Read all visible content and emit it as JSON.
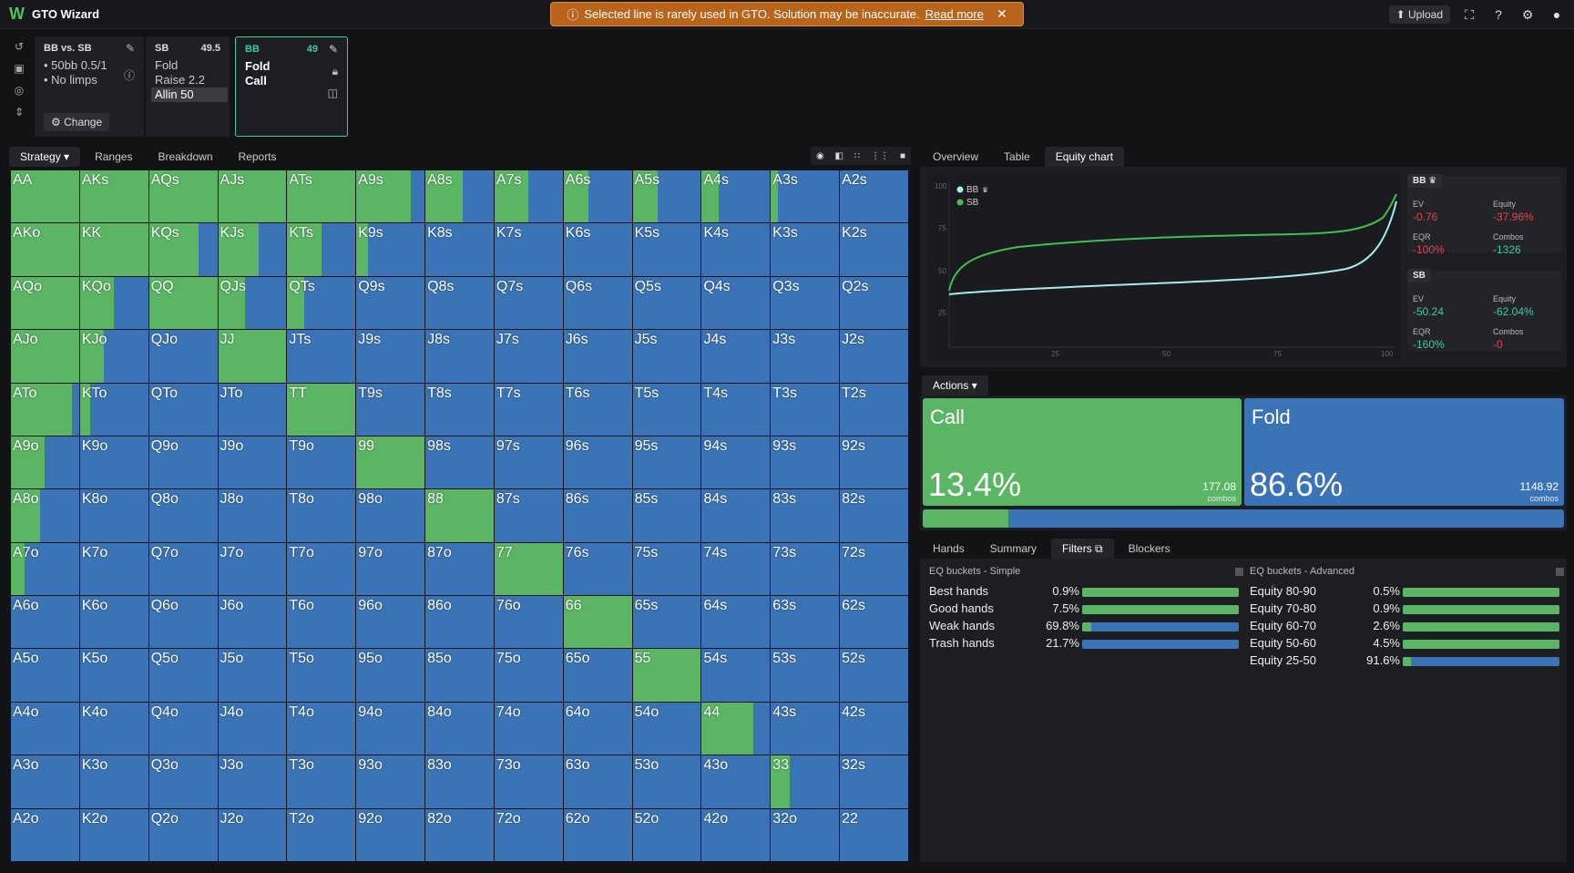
{
  "app": {
    "title": "GTO Wizard",
    "logo_letter": "W"
  },
  "banner": {
    "text": "Selected line is rarely used in GTO. Solution may be inaccurate.",
    "link": "Read more"
  },
  "topbar": {
    "upload": "Upload"
  },
  "cards": {
    "c1": {
      "header": "BB vs. SB",
      "line1": "• 50bb 0.5/1",
      "line2": "• No limps",
      "change": "Change"
    },
    "c2": {
      "header": "SB",
      "num": "49.5",
      "opts": [
        "Fold",
        "Raise 2.2",
        "Allin 50"
      ]
    },
    "c3": {
      "header": "BB",
      "num": "49",
      "opts": [
        "Fold",
        "Call"
      ]
    }
  },
  "left_tabs": [
    "Strategy",
    "Ranges",
    "Breakdown",
    "Reports"
  ],
  "grid": [
    [
      "AA",
      1
    ],
    [
      "AKs",
      1
    ],
    [
      "AQs",
      1
    ],
    [
      "AJs",
      1
    ],
    [
      "ATs",
      1
    ],
    [
      "A9s",
      0.8
    ],
    [
      "A8s",
      0.55
    ],
    [
      "A7s",
      0.5
    ],
    [
      "A6s",
      0.37
    ],
    [
      "A5s",
      0.37
    ],
    [
      "A4s",
      0.25
    ],
    [
      "A3s",
      0.1
    ],
    [
      "A2s",
      0
    ],
    [
      "AKo",
      1
    ],
    [
      "KK",
      1
    ],
    [
      "KQs",
      0.72
    ],
    [
      "KJs",
      0.6
    ],
    [
      "KTs",
      0.5
    ],
    [
      "K9s",
      0.17
    ],
    [
      "K8s",
      0
    ],
    [
      "K7s",
      0
    ],
    [
      "K6s",
      0
    ],
    [
      "K5s",
      0
    ],
    [
      "K4s",
      0
    ],
    [
      "K3s",
      0
    ],
    [
      "K2s",
      0
    ],
    [
      "AQo",
      1
    ],
    [
      "KQo",
      0.5
    ],
    [
      "QQ",
      1
    ],
    [
      "QJs",
      0.4
    ],
    [
      "QTs",
      0.25
    ],
    [
      "Q9s",
      0
    ],
    [
      "Q8s",
      0
    ],
    [
      "Q7s",
      0
    ],
    [
      "Q6s",
      0
    ],
    [
      "Q5s",
      0
    ],
    [
      "Q4s",
      0
    ],
    [
      "Q3s",
      0
    ],
    [
      "Q2s",
      0
    ],
    [
      "AJo",
      1
    ],
    [
      "KJo",
      0.35
    ],
    [
      "QJo",
      0
    ],
    [
      "JJ",
      1
    ],
    [
      "JTs",
      0
    ],
    [
      "J9s",
      0
    ],
    [
      "J8s",
      0
    ],
    [
      "J7s",
      0
    ],
    [
      "J6s",
      0
    ],
    [
      "J5s",
      0
    ],
    [
      "J4s",
      0
    ],
    [
      "J3s",
      0
    ],
    [
      "J2s",
      0
    ],
    [
      "ATo",
      0.9
    ],
    [
      "KTo",
      0.15
    ],
    [
      "QTo",
      0
    ],
    [
      "JTo",
      0
    ],
    [
      "TT",
      1
    ],
    [
      "T9s",
      0
    ],
    [
      "T8s",
      0
    ],
    [
      "T7s",
      0
    ],
    [
      "T6s",
      0
    ],
    [
      "T5s",
      0
    ],
    [
      "T4s",
      0
    ],
    [
      "T3s",
      0
    ],
    [
      "T2s",
      0
    ],
    [
      "A9o",
      0.5
    ],
    [
      "K9o",
      0
    ],
    [
      "Q9o",
      0
    ],
    [
      "J9o",
      0
    ],
    [
      "T9o",
      0
    ],
    [
      "99",
      1
    ],
    [
      "98s",
      0
    ],
    [
      "97s",
      0
    ],
    [
      "96s",
      0
    ],
    [
      "95s",
      0
    ],
    [
      "94s",
      0
    ],
    [
      "93s",
      0
    ],
    [
      "92s",
      0
    ],
    [
      "A8o",
      0.43
    ],
    [
      "K8o",
      0
    ],
    [
      "Q8o",
      0
    ],
    [
      "J8o",
      0
    ],
    [
      "T8o",
      0
    ],
    [
      "98o",
      0
    ],
    [
      "88",
      1
    ],
    [
      "87s",
      0
    ],
    [
      "86s",
      0
    ],
    [
      "85s",
      0
    ],
    [
      "84s",
      0
    ],
    [
      "83s",
      0
    ],
    [
      "82s",
      0
    ],
    [
      "A7o",
      0.2
    ],
    [
      "K7o",
      0
    ],
    [
      "Q7o",
      0
    ],
    [
      "J7o",
      0
    ],
    [
      "T7o",
      0
    ],
    [
      "97o",
      0
    ],
    [
      "87o",
      0
    ],
    [
      "77",
      1
    ],
    [
      "76s",
      0
    ],
    [
      "75s",
      0
    ],
    [
      "74s",
      0
    ],
    [
      "73s",
      0
    ],
    [
      "72s",
      0
    ],
    [
      "A6o",
      0
    ],
    [
      "K6o",
      0
    ],
    [
      "Q6o",
      0
    ],
    [
      "J6o",
      0
    ],
    [
      "T6o",
      0
    ],
    [
      "96o",
      0
    ],
    [
      "86o",
      0
    ],
    [
      "76o",
      0
    ],
    [
      "66",
      1
    ],
    [
      "65s",
      0
    ],
    [
      "64s",
      0
    ],
    [
      "63s",
      0
    ],
    [
      "62s",
      0
    ],
    [
      "A5o",
      0
    ],
    [
      "K5o",
      0
    ],
    [
      "Q5o",
      0
    ],
    [
      "J5o",
      0
    ],
    [
      "T5o",
      0
    ],
    [
      "95o",
      0
    ],
    [
      "85o",
      0
    ],
    [
      "75o",
      0
    ],
    [
      "65o",
      0
    ],
    [
      "55",
      1
    ],
    [
      "54s",
      0
    ],
    [
      "53s",
      0
    ],
    [
      "52s",
      0
    ],
    [
      "A4o",
      0
    ],
    [
      "K4o",
      0
    ],
    [
      "Q4o",
      0
    ],
    [
      "J4o",
      0
    ],
    [
      "T4o",
      0
    ],
    [
      "94o",
      0
    ],
    [
      "84o",
      0
    ],
    [
      "74o",
      0
    ],
    [
      "64o",
      0
    ],
    [
      "54o",
      0
    ],
    [
      "44",
      0.75
    ],
    [
      "43s",
      0
    ],
    [
      "42s",
      0
    ],
    [
      "A3o",
      0
    ],
    [
      "K3o",
      0
    ],
    [
      "Q3o",
      0
    ],
    [
      "J3o",
      0
    ],
    [
      "T3o",
      0
    ],
    [
      "93o",
      0
    ],
    [
      "83o",
      0
    ],
    [
      "73o",
      0
    ],
    [
      "63o",
      0
    ],
    [
      "53o",
      0
    ],
    [
      "43o",
      0
    ],
    [
      "33",
      0.27
    ],
    [
      "32s",
      0
    ],
    [
      "A2o",
      0
    ],
    [
      "K2o",
      0
    ],
    [
      "Q2o",
      0
    ],
    [
      "J2o",
      0
    ],
    [
      "T2o",
      0
    ],
    [
      "92o",
      0
    ],
    [
      "82o",
      0
    ],
    [
      "72o",
      0
    ],
    [
      "62o",
      0
    ],
    [
      "52o",
      0
    ],
    [
      "42o",
      0
    ],
    [
      "32o",
      0
    ],
    [
      "22",
      0
    ]
  ],
  "right_tabs": [
    "Overview",
    "Table",
    "Equity chart"
  ],
  "equity_chart": {
    "legend": [
      "BB",
      "SB"
    ],
    "y_ticks": [
      "100",
      "75",
      "50",
      "25"
    ],
    "x_ticks": [
      "25",
      "50",
      "75",
      "100"
    ],
    "colors": {
      "BB": "#a6ecf0",
      "SB": "#3fbf4d"
    }
  },
  "stats": {
    "BB": {
      "label": "BB",
      "ev_l": "EV",
      "ev": "-0.76",
      "eq_l": "Equity",
      "eq": "-37.96%",
      "eqr_l": "EQR",
      "eqr": "-100%",
      "combos_l": "Combos",
      "combos": "-1326"
    },
    "SB": {
      "label": "SB",
      "ev_l": "EV",
      "ev": "-50.24",
      "eq_l": "Equity",
      "eq": "-62.04%",
      "eqr_l": "EQR",
      "eqr": "-160%",
      "combos_l": "Combos",
      "combos": "-0"
    }
  },
  "actions": {
    "tab": "Actions",
    "call": {
      "name": "Call",
      "pct": "13.4%",
      "combos": "177.08",
      "combos_lbl": "combos",
      "frac": 0.134
    },
    "fold": {
      "name": "Fold",
      "pct": "86.6%",
      "combos": "1148.92",
      "combos_lbl": "combos"
    }
  },
  "bottom_tabs": [
    "Hands",
    "Summary",
    "Filters",
    "Blockers"
  ],
  "eq_simple": {
    "title": "EQ buckets - Simple",
    "rows": [
      {
        "name": "Best hands",
        "pct": "0.9%",
        "frac": 1
      },
      {
        "name": "Good hands",
        "pct": "7.5%",
        "frac": 1
      },
      {
        "name": "Weak hands",
        "pct": "69.8%",
        "frac": 0.06
      },
      {
        "name": "Trash hands",
        "pct": "21.7%",
        "frac": 0
      }
    ]
  },
  "eq_adv": {
    "title": "EQ buckets - Advanced",
    "rows": [
      {
        "name": "Equity 80-90",
        "pct": "0.5%",
        "frac": 1
      },
      {
        "name": "Equity 70-80",
        "pct": "0.9%",
        "frac": 1
      },
      {
        "name": "Equity 60-70",
        "pct": "2.6%",
        "frac": 1
      },
      {
        "name": "Equity 50-60",
        "pct": "4.5%",
        "frac": 1
      },
      {
        "name": "Equity 25-50",
        "pct": "91.6%",
        "frac": 0.05
      }
    ]
  }
}
